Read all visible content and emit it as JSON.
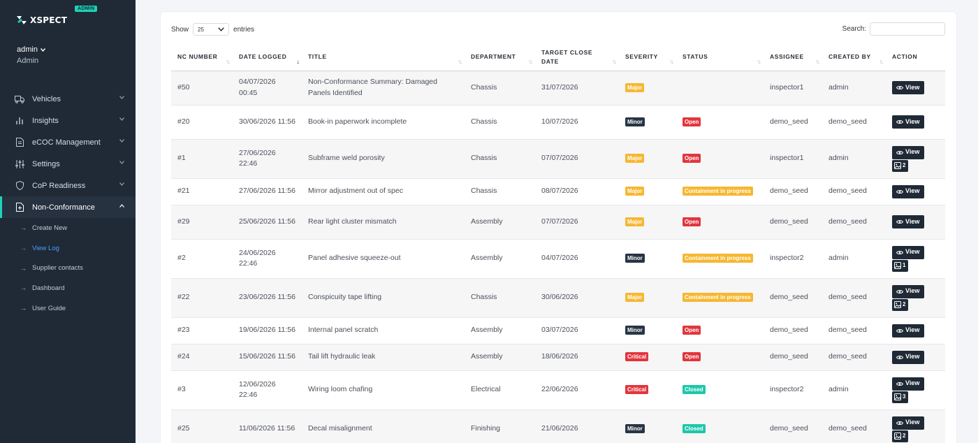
{
  "brand": {
    "name": "XSPECT",
    "badge": "ADMIN"
  },
  "user": {
    "name": "admin",
    "role": "Admin"
  },
  "nav": [
    {
      "label": "Vehicles",
      "icon": "truck-icon"
    },
    {
      "label": "Insights",
      "icon": "bar-chart-icon"
    },
    {
      "label": "eCOC Management",
      "icon": "document-icon"
    },
    {
      "label": "Settings",
      "icon": "sliders-icon"
    },
    {
      "label": "CoP Readiness",
      "icon": "shield-icon"
    },
    {
      "label": "Non-Conformance",
      "icon": "file-plus-icon"
    }
  ],
  "subnav": [
    {
      "label": "Create New"
    },
    {
      "label": "View Log"
    },
    {
      "label": "Supplier contacts"
    },
    {
      "label": "Dashboard"
    },
    {
      "label": "User Guide"
    }
  ],
  "table_controls": {
    "show_label": "Show",
    "page_size": "25",
    "entries_label": "entries",
    "search_label": "Search:"
  },
  "columns": [
    {
      "label": "NC NUMBER"
    },
    {
      "label": "DATE LOGGED"
    },
    {
      "label": "TITLE"
    },
    {
      "label": "DEPARTMENT"
    },
    {
      "label": "TARGET CLOSE DATE"
    },
    {
      "label": "SEVERITY"
    },
    {
      "label": "STATUS"
    },
    {
      "label": "ASSIGNEE"
    },
    {
      "label": "CREATED BY"
    },
    {
      "label": "ACTION"
    }
  ],
  "view_label": "View",
  "rows": [
    {
      "nc": "#50",
      "date": "04/07/2026 00:45",
      "title": "Non-Conformance Summary: Damaged Panels Identified",
      "dept": "Chassis",
      "target": "31/07/2026",
      "severity": "Major",
      "status": "",
      "assignee": "inspector1",
      "created_by": "admin",
      "images": ""
    },
    {
      "nc": "#20",
      "date": "30/06/2026 11:56",
      "title": "Book-in paperwork incomplete",
      "dept": "Chassis",
      "target": "10/07/2026",
      "severity": "Minor",
      "status": "Open",
      "assignee": "demo_seed",
      "created_by": "demo_seed",
      "images": ""
    },
    {
      "nc": "#1",
      "date": "27/06/2026 22:46",
      "title": "Subframe weld porosity",
      "dept": "Chassis",
      "target": "07/07/2026",
      "severity": "Major",
      "status": "Open",
      "assignee": "inspector1",
      "created_by": "admin",
      "images": "2"
    },
    {
      "nc": "#21",
      "date": "27/06/2026 11:56",
      "title": "Mirror adjustment out of spec",
      "dept": "Chassis",
      "target": "08/07/2026",
      "severity": "Major",
      "status": "Containment in progress",
      "assignee": "demo_seed",
      "created_by": "demo_seed",
      "images": ""
    },
    {
      "nc": "#29",
      "date": "25/06/2026 11:56",
      "title": "Rear light cluster mismatch",
      "dept": "Assembly",
      "target": "07/07/2026",
      "severity": "Major",
      "status": "Open",
      "assignee": "demo_seed",
      "created_by": "demo_seed",
      "images": ""
    },
    {
      "nc": "#2",
      "date": "24/06/2026 22:46",
      "title": "Panel adhesive squeeze-out",
      "dept": "Assembly",
      "target": "04/07/2026",
      "severity": "Minor",
      "status": "Containment in progress",
      "assignee": "inspector2",
      "created_by": "admin",
      "images": "1"
    },
    {
      "nc": "#22",
      "date": "23/06/2026 11:56",
      "title": "Conspicuity tape lifting",
      "dept": "Chassis",
      "target": "30/06/2026",
      "severity": "Major",
      "status": "Containment in progress",
      "assignee": "demo_seed",
      "created_by": "demo_seed",
      "images": "2"
    },
    {
      "nc": "#23",
      "date": "19/06/2026 11:56",
      "title": "Internal panel scratch",
      "dept": "Assembly",
      "target": "03/07/2026",
      "severity": "Minor",
      "status": "Open",
      "assignee": "demo_seed",
      "created_by": "demo_seed",
      "images": ""
    },
    {
      "nc": "#24",
      "date": "15/06/2026 11:56",
      "title": "Tail lift hydraulic leak",
      "dept": "Assembly",
      "target": "18/06/2026",
      "severity": "Critical",
      "status": "Open",
      "assignee": "demo_seed",
      "created_by": "demo_seed",
      "images": ""
    },
    {
      "nc": "#3",
      "date": "12/06/2026 22:46",
      "title": "Wiring loom chafing",
      "dept": "Electrical",
      "target": "22/06/2026",
      "severity": "Critical",
      "status": "Closed",
      "assignee": "inspector2",
      "created_by": "admin",
      "images": "3"
    },
    {
      "nc": "#25",
      "date": "11/06/2026 11:56",
      "title": "Decal misalignment",
      "dept": "Finishing",
      "target": "21/06/2026",
      "severity": "Minor",
      "status": "Closed",
      "assignee": "demo_seed",
      "created_by": "demo_seed",
      "images": "2"
    }
  ],
  "colors": {
    "sidebar": "#1f2a36",
    "accent": "#1fd1b9",
    "major": "#f6b731",
    "minor": "#273444",
    "critical": "#e2353d",
    "closed": "#1ec7a9",
    "link": "#4f9ef8"
  }
}
